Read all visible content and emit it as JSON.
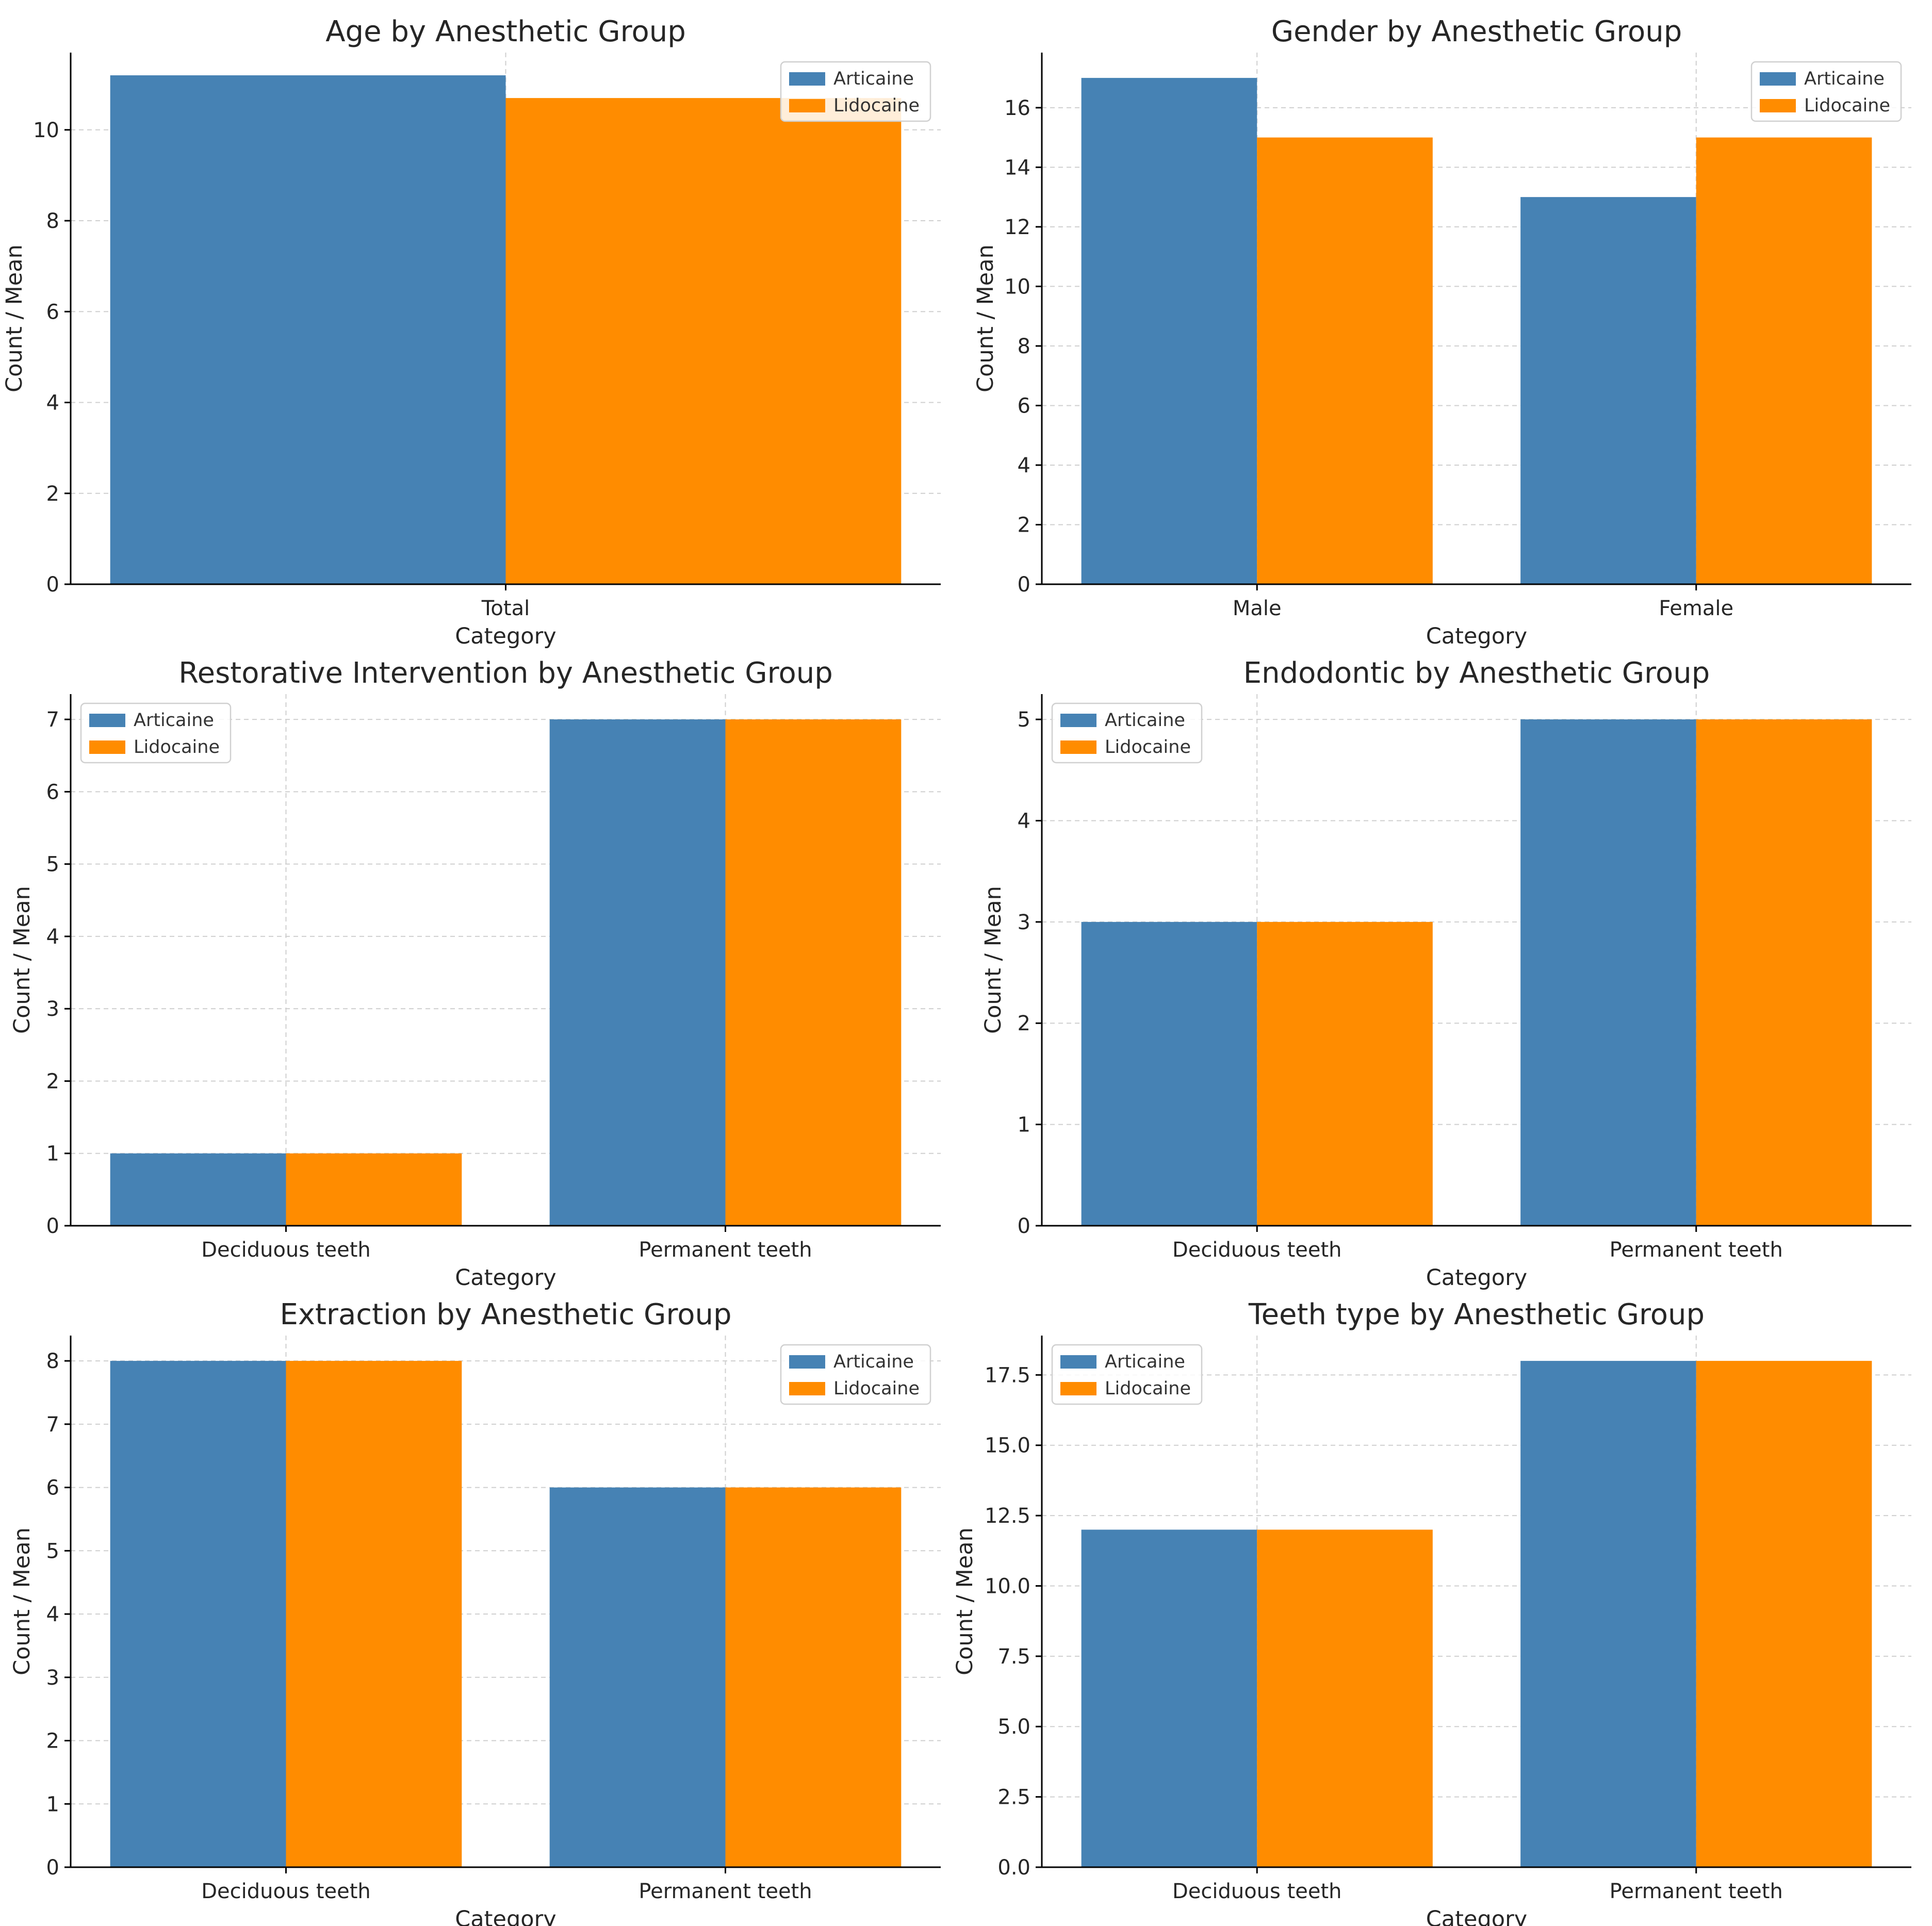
{
  "chart_data": [
    {
      "type": "bar",
      "title": "Age by Anesthetic Group",
      "xlabel": "Category",
      "ylabel": "Count / Mean",
      "categories": [
        "Total"
      ],
      "series": [
        {
          "name": "Articaine",
          "values": [
            11.2
          ]
        },
        {
          "name": "Lidocaine",
          "values": [
            10.7
          ]
        }
      ],
      "ylim": [
        0,
        11.7
      ],
      "yticks": [
        0,
        2,
        4,
        6,
        8,
        10
      ],
      "ytick_labels": [
        "0",
        "2",
        "4",
        "6",
        "8",
        "10"
      ],
      "legend": "top-right",
      "grid": true
    },
    {
      "type": "bar",
      "title": "Gender by Anesthetic Group",
      "xlabel": "Category",
      "ylabel": "Count / Mean",
      "categories": [
        "Male",
        "Female"
      ],
      "series": [
        {
          "name": "Articaine",
          "values": [
            17,
            13
          ]
        },
        {
          "name": "Lidocaine",
          "values": [
            15,
            15
          ]
        }
      ],
      "ylim": [
        0,
        17.85
      ],
      "yticks": [
        0,
        2,
        4,
        6,
        8,
        10,
        12,
        14,
        16
      ],
      "ytick_labels": [
        "0",
        "2",
        "4",
        "6",
        "8",
        "10",
        "12",
        "14",
        "16"
      ],
      "legend": "top-right",
      "grid": true
    },
    {
      "type": "bar",
      "title": "Restorative Intervention by Anesthetic Group",
      "xlabel": "Category",
      "ylabel": "Count / Mean",
      "categories": [
        "Deciduous teeth",
        "Permanent teeth"
      ],
      "series": [
        {
          "name": "Articaine",
          "values": [
            1,
            7
          ]
        },
        {
          "name": "Lidocaine",
          "values": [
            1,
            7
          ]
        }
      ],
      "ylim": [
        0,
        7.35
      ],
      "yticks": [
        0,
        1,
        2,
        3,
        4,
        5,
        6,
        7
      ],
      "ytick_labels": [
        "0",
        "1",
        "2",
        "3",
        "4",
        "5",
        "6",
        "7"
      ],
      "legend": "top-left",
      "grid": true
    },
    {
      "type": "bar",
      "title": "Endodontic by Anesthetic Group",
      "xlabel": "Category",
      "ylabel": "Count / Mean",
      "categories": [
        "Deciduous teeth",
        "Permanent teeth"
      ],
      "series": [
        {
          "name": "Articaine",
          "values": [
            3,
            5
          ]
        },
        {
          "name": "Lidocaine",
          "values": [
            3,
            5
          ]
        }
      ],
      "ylim": [
        0,
        5.25
      ],
      "yticks": [
        0,
        1,
        2,
        3,
        4,
        5
      ],
      "ytick_labels": [
        "0",
        "1",
        "2",
        "3",
        "4",
        "5"
      ],
      "legend": "top-left",
      "grid": true
    },
    {
      "type": "bar",
      "title": "Extraction by Anesthetic Group",
      "xlabel": "Category",
      "ylabel": "Count / Mean",
      "categories": [
        "Deciduous teeth",
        "Permanent teeth"
      ],
      "series": [
        {
          "name": "Articaine",
          "values": [
            8,
            6
          ]
        },
        {
          "name": "Lidocaine",
          "values": [
            8,
            6
          ]
        }
      ],
      "ylim": [
        0,
        8.4
      ],
      "yticks": [
        0,
        1,
        2,
        3,
        4,
        5,
        6,
        7,
        8
      ],
      "ytick_labels": [
        "0",
        "1",
        "2",
        "3",
        "4",
        "5",
        "6",
        "7",
        "8"
      ],
      "legend": "top-right",
      "grid": true
    },
    {
      "type": "bar",
      "title": "Teeth type by Anesthetic Group",
      "xlabel": "Category",
      "ylabel": "Count / Mean",
      "categories": [
        "Deciduous teeth",
        "Permanent teeth"
      ],
      "series": [
        {
          "name": "Articaine",
          "values": [
            12,
            18
          ]
        },
        {
          "name": "Lidocaine",
          "values": [
            12,
            18
          ]
        }
      ],
      "ylim": [
        0,
        18.9
      ],
      "yticks": [
        0,
        2.5,
        5,
        7.5,
        10,
        12.5,
        15,
        17.5
      ],
      "ytick_labels": [
        "0.0",
        "2.5",
        "5.0",
        "7.5",
        "10.0",
        "12.5",
        "15.0",
        "17.5"
      ],
      "legend": "top-left",
      "grid": true
    }
  ],
  "colors": {
    "Articaine": "#4682b4",
    "Lidocaine": "#ff8c00"
  }
}
